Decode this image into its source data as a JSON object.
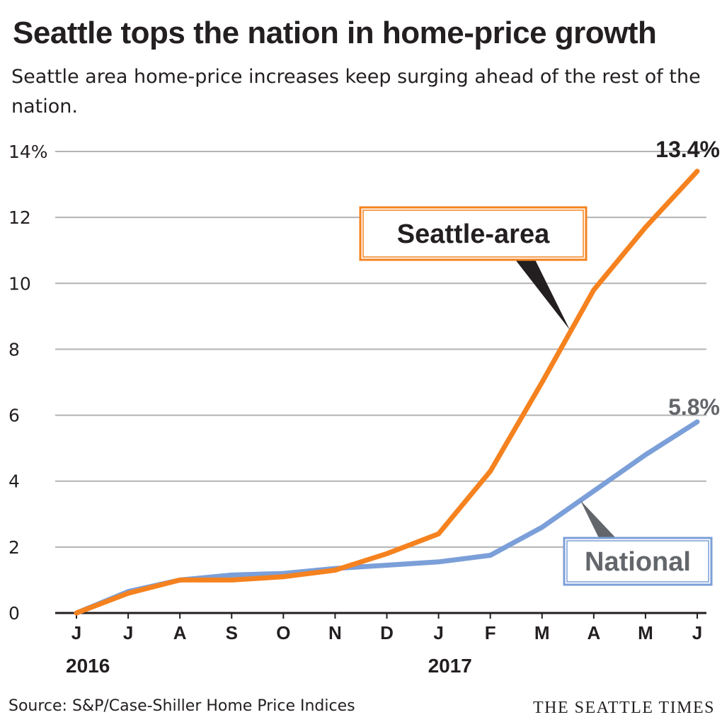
{
  "header": {
    "title": "Seattle tops the nation in home-price growth",
    "subtitle": "Seattle area home-price increases keep surging ahead of the rest of the nation."
  },
  "footer": {
    "source": "Source: S&P/Case-Shiller Home Price Indices",
    "brand": "THE SEATTLE TIMES"
  },
  "chart_data": {
    "type": "line",
    "title": "Seattle tops the nation in home-price growth",
    "subtitle": "Seattle area home-price increases keep surging ahead of the rest of the nation.",
    "xlabel": "",
    "ylabel": "",
    "categories": [
      "J",
      "J",
      "A",
      "S",
      "O",
      "N",
      "D",
      "J",
      "F",
      "M",
      "A",
      "M",
      "J"
    ],
    "year_labels": [
      {
        "index": 0,
        "label": "2016"
      },
      {
        "index": 7,
        "label": "2017"
      }
    ],
    "y_ticks": [
      "14%",
      "12",
      "10",
      "8",
      "6",
      "4",
      "2",
      "0"
    ],
    "ylim": [
      0,
      14
    ],
    "grid": true,
    "series": [
      {
        "name": "Seattle-area",
        "color": "#f5821f",
        "values": [
          0,
          0.6,
          1.0,
          1.0,
          1.1,
          1.3,
          1.8,
          2.4,
          4.3,
          7.0,
          9.8,
          11.7,
          13.4
        ],
        "end_label": "13.4%",
        "end_label_color": "#231f20"
      },
      {
        "name": "National",
        "color": "#7b9fd8",
        "values": [
          0,
          0.65,
          1.0,
          1.15,
          1.2,
          1.35,
          1.45,
          1.55,
          1.75,
          2.6,
          3.7,
          4.8,
          5.8
        ],
        "end_label": "5.8%",
        "end_label_color": "#63666a"
      }
    ],
    "legend_placement": "callout boxes near lines"
  },
  "colors": {
    "seattle": "#f5821f",
    "national": "#7b9fd8",
    "grid": "#b3b3b3",
    "text": "#231f20",
    "muted_text": "#63666a"
  }
}
